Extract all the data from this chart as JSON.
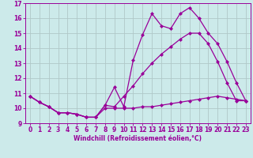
{
  "x": [
    0,
    1,
    2,
    3,
    4,
    5,
    6,
    7,
    8,
    9,
    10,
    11,
    12,
    13,
    14,
    15,
    16,
    17,
    18,
    19,
    20,
    21,
    22,
    23
  ],
  "line1": [
    10.8,
    10.4,
    10.1,
    9.7,
    9.7,
    9.6,
    9.4,
    9.4,
    10.2,
    11.4,
    10.1,
    13.2,
    14.9,
    16.3,
    15.5,
    15.3,
    16.3,
    16.7,
    16.0,
    15.0,
    14.3,
    13.1,
    11.7,
    10.5
  ],
  "line2": [
    10.8,
    10.4,
    10.1,
    9.7,
    9.7,
    9.6,
    9.4,
    9.4,
    10.2,
    10.1,
    10.8,
    11.5,
    12.3,
    13.0,
    13.6,
    14.1,
    14.6,
    15.0,
    15.0,
    14.3,
    13.1,
    11.7,
    10.5,
    10.5
  ],
  "line3": [
    10.8,
    10.4,
    10.1,
    9.7,
    9.7,
    9.6,
    9.4,
    9.4,
    10.0,
    10.0,
    10.0,
    10.0,
    10.1,
    10.1,
    10.2,
    10.3,
    10.4,
    10.5,
    10.6,
    10.7,
    10.8,
    10.7,
    10.6,
    10.5
  ],
  "color": "#990099",
  "bg_color": "#cceaea",
  "grid_color": "#b0c8c8",
  "ylim": [
    9,
    17
  ],
  "xlim": [
    -0.5,
    23.5
  ],
  "yticks": [
    9,
    10,
    11,
    12,
    13,
    14,
    15,
    16,
    17
  ],
  "xticks": [
    0,
    1,
    2,
    3,
    4,
    5,
    6,
    7,
    8,
    9,
    10,
    11,
    12,
    13,
    14,
    15,
    16,
    17,
    18,
    19,
    20,
    21,
    22,
    23
  ],
  "xlabel": "Windchill (Refroidissement éolien,°C)",
  "marker": "D",
  "marker_size": 2.0,
  "linewidth": 0.9,
  "tick_fontsize": 5.5,
  "xlabel_fontsize": 5.5
}
